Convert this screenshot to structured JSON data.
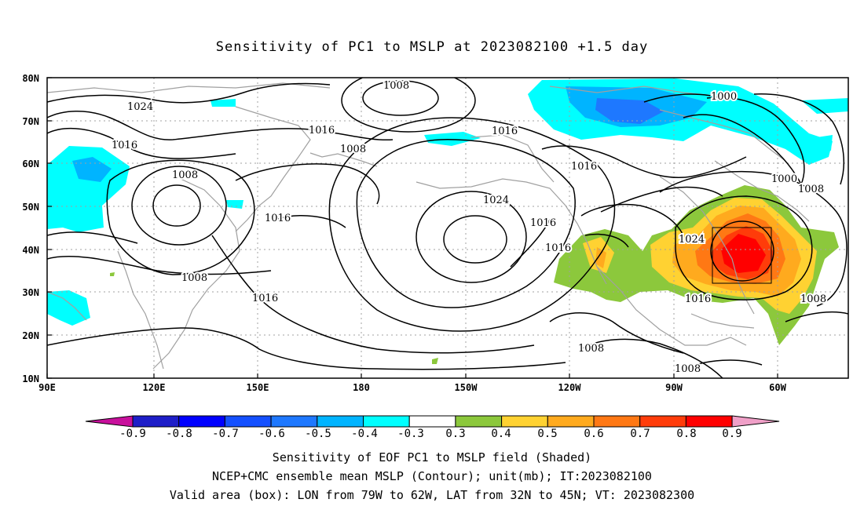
{
  "title": "Sensitivity of PC1 to MSLP at 2023082100 +1.5 day",
  "map": {
    "lat_labels": [
      "80N",
      "70N",
      "60N",
      "50N",
      "40N",
      "30N",
      "20N",
      "10N"
    ],
    "lon_labels": [
      "90E",
      "120E",
      "150E",
      "180",
      "150W",
      "120W",
      "90W",
      "60W"
    ],
    "contour_labels": [
      "1024",
      "1008",
      "1016",
      "1016",
      "1008",
      "1016",
      "1008",
      "1016",
      "1008",
      "1016",
      "1024",
      "1016",
      "1016",
      "1024",
      "1000",
      "1000",
      "1008",
      "1016",
      "1016",
      "1008",
      "1008"
    ],
    "valid_box": {
      "lon_from": "79W",
      "lon_to": "62W",
      "lat_from": "32N",
      "lat_to": "45N"
    }
  },
  "colorbar": {
    "labels": [
      "-0.9",
      "-0.8",
      "-0.7",
      "-0.6",
      "-0.5",
      "-0.4",
      "-0.3",
      "0.3",
      "0.4",
      "0.5",
      "0.6",
      "0.7",
      "0.8",
      "0.9"
    ],
    "colors": [
      "#1e1ec8",
      "#0000ff",
      "#1450ff",
      "#1e78ff",
      "#00b4ff",
      "#00ffff",
      "#ffffff",
      "#8cc83c",
      "#ffd232",
      "#ffaa1e",
      "#ff7814",
      "#ff3c0a",
      "#ff0000"
    ],
    "low_end_color": "#c8109c",
    "high_end_color": "#f0a0c8"
  },
  "captions": {
    "line1": "Sensitivity of EOF PC1 to MSLP field (Shaded)",
    "line2": "NCEP+CMC ensemble mean MSLP (Contour); unit(mb); IT:2023082100",
    "line3": "Valid area (box): LON from 79W to 62W, LAT from 32N to 45N; VT: 2023082300"
  }
}
